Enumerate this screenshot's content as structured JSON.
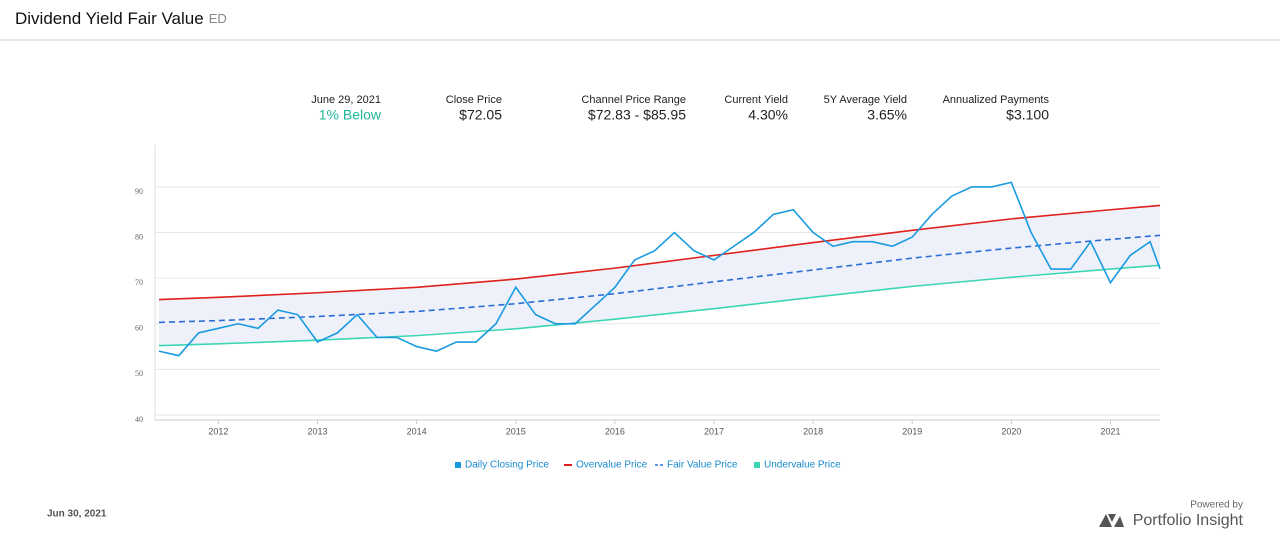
{
  "header": {
    "title": "Dividend Yield Fair Value",
    "ticker": "ED"
  },
  "stats": [
    {
      "label": "June 29, 2021",
      "value": "1%  Below"
    },
    {
      "label": "Close Price",
      "value": "$72.05"
    },
    {
      "label": "Channel Price Range",
      "value": "$72.83 - $85.95"
    },
    {
      "label": "Current Yield",
      "value": "4.30%"
    },
    {
      "label": "5Y Average Yield",
      "value": "3.65%"
    },
    {
      "label": "Annualized Payments",
      "value": "$3.100"
    }
  ],
  "chart_data": {
    "type": "line",
    "xlim": [
      2011.36,
      2021.5
    ],
    "ylim": [
      38.9,
      99.2
    ],
    "xticks": [
      2012,
      2013,
      2014,
      2015,
      2016,
      2017,
      2018,
      2019,
      2020,
      2021
    ],
    "yticks": [
      40,
      50,
      60,
      70,
      80,
      90
    ],
    "grid": true,
    "series": [
      {
        "name": "Daily Closing Price",
        "color": "#1a9be0",
        "x": [
          2011.4,
          2011.6,
          2011.8,
          2012,
          2012.2,
          2012.4,
          2012.6,
          2012.8,
          2013,
          2013.2,
          2013.4,
          2013.6,
          2013.8,
          2014,
          2014.2,
          2014.4,
          2014.6,
          2014.8,
          2015,
          2015.2,
          2015.4,
          2015.6,
          2015.8,
          2016,
          2016.2,
          2016.4,
          2016.6,
          2016.8,
          2017,
          2017.2,
          2017.4,
          2017.6,
          2017.8,
          2018,
          2018.2,
          2018.4,
          2018.6,
          2018.8,
          2019,
          2019.2,
          2019.4,
          2019.6,
          2019.8,
          2020,
          2020.2,
          2020.4,
          2020.6,
          2020.8,
          2021,
          2021.2,
          2021.4,
          2021.5
        ],
        "values": [
          54,
          53,
          58,
          59,
          60,
          59,
          63,
          62,
          56,
          58,
          62,
          57,
          57,
          55,
          54,
          56,
          56,
          60,
          68,
          62,
          60,
          60,
          64,
          68,
          74,
          76,
          80,
          76,
          74,
          77,
          80,
          84,
          85,
          80,
          77,
          78,
          78,
          77,
          79,
          84,
          88,
          90,
          90,
          91,
          80,
          72,
          72,
          78,
          69,
          75,
          78,
          72.05
        ]
      },
      {
        "name": "Overvalue Price",
        "color": "#e0201b",
        "x": [
          2011.4,
          2012,
          2013,
          2014,
          2015,
          2016,
          2017,
          2018,
          2019,
          2020,
          2021,
          2021.5
        ],
        "values": [
          65.3,
          65.8,
          66.8,
          68.0,
          69.8,
          72.2,
          75.0,
          77.8,
          80.5,
          83.0,
          85.0,
          85.95
        ]
      },
      {
        "name": "Fair Value Price",
        "color": "#2a6ed6",
        "dashed": true,
        "x": [
          2011.4,
          2012,
          2013,
          2014,
          2015,
          2016,
          2017,
          2018,
          2019,
          2020,
          2021,
          2021.5
        ],
        "values": [
          60.3,
          60.7,
          61.6,
          62.7,
          64.4,
          66.6,
          69.2,
          71.8,
          74.4,
          76.6,
          78.5,
          79.39
        ]
      },
      {
        "name": "Undervalue Price",
        "color": "#3dd6b5",
        "x": [
          2011.4,
          2012,
          2013,
          2014,
          2015,
          2016,
          2017,
          2018,
          2019,
          2020,
          2021,
          2021.5
        ],
        "values": [
          55.2,
          55.6,
          56.4,
          57.4,
          58.9,
          61.0,
          63.3,
          65.8,
          68.2,
          70.2,
          72.0,
          72.83
        ]
      }
    ]
  },
  "footer": {
    "date": "Jun 30, 2021",
    "powered_by": "Powered by",
    "brand": "Portfolio Insight"
  }
}
